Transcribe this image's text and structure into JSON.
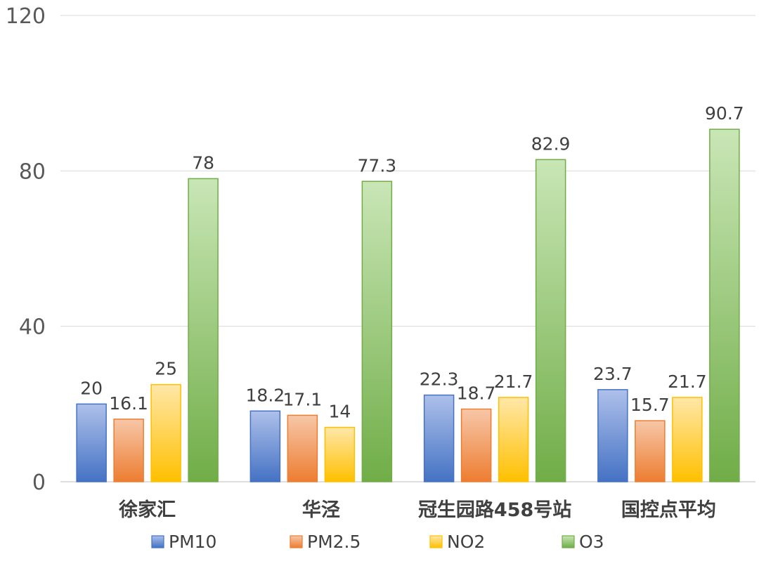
{
  "chart_data": {
    "type": "bar",
    "title": "",
    "xlabel": "",
    "ylabel": "",
    "categories": [
      "徐家汇",
      "华泾",
      "冠生园路458号站",
      "国控点平均"
    ],
    "ylim": [
      0,
      120
    ],
    "yticks": [
      "0",
      "40",
      "80",
      "120"
    ],
    "grid": true,
    "legend_position": "bottom",
    "series": [
      {
        "name": "PM10",
        "values": [
          20,
          18.2,
          22.3,
          23.7
        ],
        "labels": [
          "20",
          "18.2",
          "22.3",
          "23.7"
        ],
        "color_top": "#AEC0EA",
        "color_bottom": "#4472C4",
        "stroke": "#4472C4"
      },
      {
        "name": "PM2.5",
        "values": [
          16.1,
          17.1,
          18.7,
          15.7
        ],
        "labels": [
          "16.1",
          "17.1",
          "18.7",
          "15.7"
        ],
        "color_top": "#F7C7A8",
        "color_bottom": "#ED7D31",
        "stroke": "#ED7D31"
      },
      {
        "name": "NO2",
        "values": [
          25,
          14,
          21.7,
          21.7
        ],
        "labels": [
          "25",
          "14",
          "21.7",
          "21.7"
        ],
        "color_top": "#FFE7A8",
        "color_bottom": "#FFC000",
        "stroke": "#FFC000"
      },
      {
        "name": "O3",
        "values": [
          78,
          77.3,
          82.9,
          90.7
        ],
        "labels": [
          "78",
          "77.3",
          "82.9",
          "90.7"
        ],
        "color_top": "#C9E6B6",
        "color_bottom": "#70AD47",
        "stroke": "#70AD47"
      }
    ]
  }
}
